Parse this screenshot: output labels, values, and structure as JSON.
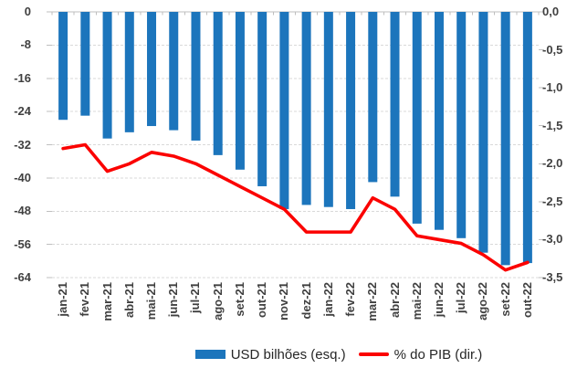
{
  "chart_data": {
    "type": "bar",
    "subtype": "bar+line dual axis",
    "title": "",
    "categories": [
      "jan-21",
      "fev-21",
      "mar-21",
      "abr-21",
      "mai-21",
      "jun-21",
      "jul-21",
      "ago-21",
      "set-21",
      "out-21",
      "nov-21",
      "dez-21",
      "jan-22",
      "fev-22",
      "mar-22",
      "abr-22",
      "mai-22",
      "jun-22",
      "jul-22",
      "ago-22",
      "set-22",
      "out-22"
    ],
    "series": [
      {
        "name": "USD bilhões (esq.)",
        "type": "bar",
        "axis": "left",
        "color": "#1C75BC",
        "values": [
          -26,
          -25,
          -30.5,
          -29,
          -27.5,
          -28.5,
          -31,
          -34.5,
          -38,
          -42,
          -47.5,
          -46.5,
          -47,
          -47.5,
          -41,
          -44.5,
          -51,
          -52.5,
          -54.5,
          -58,
          -61,
          -60.5
        ]
      },
      {
        "name": "% do PIB (dir.)",
        "type": "line",
        "axis": "right",
        "color": "#FB0200",
        "values": [
          -1.8,
          -1.75,
          -2.1,
          -2.0,
          -1.85,
          -1.9,
          -2.0,
          -2.15,
          -2.3,
          -2.45,
          -2.6,
          -2.9,
          -2.9,
          -2.9,
          -2.45,
          -2.6,
          -2.95,
          -3.0,
          -3.05,
          -3.2,
          -3.4,
          -3.3
        ]
      }
    ],
    "left_axis": {
      "range": [
        0,
        -64
      ],
      "ticks": [
        0,
        -8,
        -16,
        -24,
        -32,
        -40,
        -48,
        -56,
        -64
      ],
      "labels": [
        "0",
        "-8",
        "-16",
        "-24",
        "-32",
        "-40",
        "-48",
        "-56",
        "-64"
      ]
    },
    "right_axis": {
      "range": [
        0,
        -3.5
      ],
      "ticks": [
        0,
        -0.5,
        -1.0,
        -1.5,
        -2.0,
        -2.5,
        -3.0,
        -3.5
      ],
      "labels": [
        "0,0",
        "-0,5",
        "-1,0",
        "-1,5",
        "-2,0",
        "-2,5",
        "-3,0",
        "-3,5"
      ]
    },
    "grid": "horizontal dashed, on",
    "legend_position": "bottom"
  },
  "colors": {
    "bar": "#1C75BC",
    "line": "#FB0200",
    "gridline": "#D9D9D9",
    "axis": "#BFBFBF",
    "tick_label": "#404040",
    "legend_text": "#262626"
  }
}
